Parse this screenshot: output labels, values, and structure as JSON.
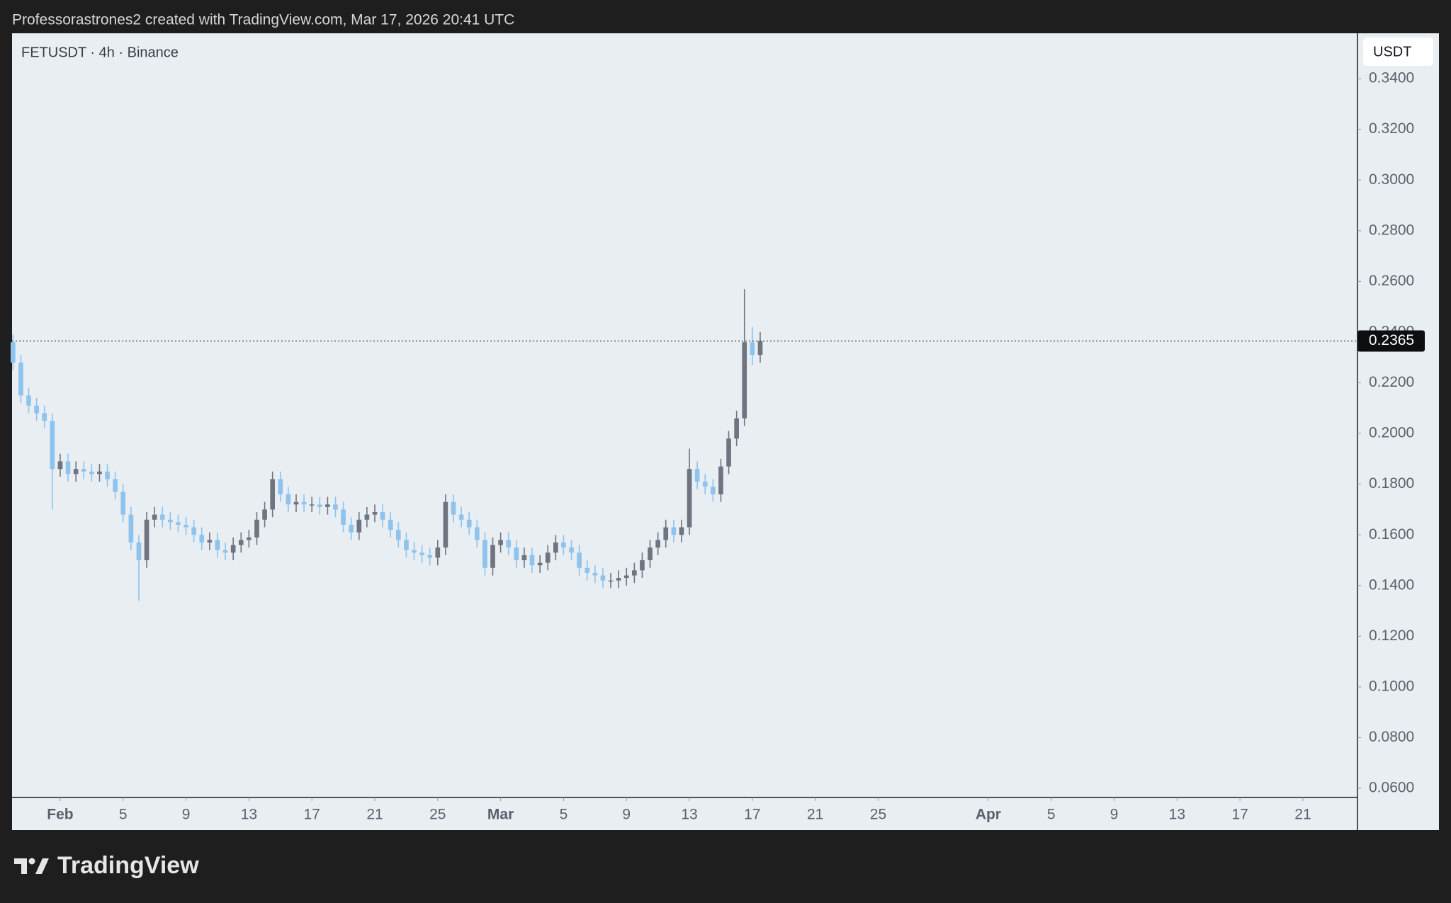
{
  "header": {
    "text": "Professorastrones2 created with TradingView.com, Mar 17, 2026 20:41 UTC"
  },
  "footer": {
    "brand": "TradingView"
  },
  "chart_data": {
    "type": "candlestick",
    "title": "FETUSDT · 4h · Binance",
    "currency": "USDT",
    "up_color": "#6f7480",
    "down_color": "#8ec3ee",
    "price_line": true,
    "x": [
      29,
      29.5,
      30,
      30.5,
      31,
      31.5,
      32,
      32.5,
      33,
      33.5,
      34,
      34.5,
      35,
      35.5,
      36,
      36.5,
      37,
      37.5,
      38,
      38.5,
      39,
      39.5,
      40,
      40.5,
      41,
      41.5,
      42,
      42.5,
      43,
      43.5,
      44,
      44.5,
      45,
      45.5,
      46,
      46.5,
      47,
      47.5,
      48,
      48.5,
      49,
      49.5,
      50,
      50.5,
      51,
      51.5,
      52,
      52.5,
      53,
      53.5,
      54,
      54.5,
      55,
      55.5,
      56,
      56.5,
      57,
      57.5,
      58,
      58.5,
      59,
      59.5,
      60,
      60.5,
      61,
      61.5,
      62,
      62.5,
      63,
      63.5,
      64,
      64.5,
      65,
      65.5,
      66,
      66.5,
      67,
      67.5,
      68,
      68.5,
      69,
      69.5,
      70,
      70.5,
      71,
      71.5,
      72,
      72.5,
      73,
      73.5,
      74,
      74.5,
      75,
      75.5,
      76,
      76.5
    ],
    "open": [
      0.236,
      0.228,
      0.215,
      0.211,
      0.208,
      0.205,
      0.186,
      0.189,
      0.184,
      0.186,
      0.185,
      0.184,
      0.185,
      0.182,
      0.177,
      0.168,
      0.157,
      0.15,
      0.166,
      0.168,
      0.166,
      0.165,
      0.164,
      0.163,
      0.16,
      0.157,
      0.158,
      0.154,
      0.153,
      0.156,
      0.158,
      0.159,
      0.166,
      0.17,
      0.182,
      0.176,
      0.172,
      0.173,
      0.172,
      0.172,
      0.171,
      0.172,
      0.17,
      0.164,
      0.161,
      0.166,
      0.168,
      0.169,
      0.166,
      0.162,
      0.158,
      0.154,
      0.153,
      0.152,
      0.151,
      0.155,
      0.173,
      0.168,
      0.166,
      0.163,
      0.158,
      0.147,
      0.156,
      0.158,
      0.155,
      0.15,
      0.152,
      0.148,
      0.149,
      0.153,
      0.157,
      0.155,
      0.153,
      0.147,
      0.145,
      0.144,
      0.142,
      0.142,
      0.143,
      0.144,
      0.146,
      0.15,
      0.155,
      0.158,
      0.163,
      0.16,
      0.163,
      0.186,
      0.181,
      0.179,
      0.176,
      0.187,
      0.198,
      0.206,
      0.236,
      0.231
    ],
    "high": [
      0.239,
      0.231,
      0.218,
      0.214,
      0.211,
      0.208,
      0.192,
      0.192,
      0.189,
      0.189,
      0.188,
      0.188,
      0.188,
      0.185,
      0.18,
      0.171,
      0.16,
      0.169,
      0.171,
      0.171,
      0.169,
      0.168,
      0.167,
      0.166,
      0.163,
      0.161,
      0.161,
      0.157,
      0.159,
      0.161,
      0.162,
      0.169,
      0.173,
      0.185,
      0.185,
      0.179,
      0.176,
      0.176,
      0.175,
      0.175,
      0.175,
      0.175,
      0.173,
      0.167,
      0.169,
      0.171,
      0.172,
      0.172,
      0.169,
      0.165,
      0.161,
      0.157,
      0.156,
      0.155,
      0.158,
      0.176,
      0.176,
      0.171,
      0.169,
      0.166,
      0.161,
      0.159,
      0.161,
      0.161,
      0.158,
      0.155,
      0.155,
      0.152,
      0.156,
      0.16,
      0.16,
      0.158,
      0.156,
      0.15,
      0.148,
      0.147,
      0.145,
      0.146,
      0.147,
      0.149,
      0.153,
      0.158,
      0.161,
      0.166,
      0.166,
      0.166,
      0.194,
      0.189,
      0.184,
      0.182,
      0.19,
      0.201,
      0.209,
      0.257,
      0.242,
      0.24
    ],
    "low": [
      0.225,
      0.212,
      0.208,
      0.205,
      0.202,
      0.17,
      0.183,
      0.181,
      0.181,
      0.182,
      0.181,
      0.181,
      0.179,
      0.174,
      0.165,
      0.154,
      0.134,
      0.147,
      0.163,
      0.163,
      0.162,
      0.161,
      0.16,
      0.157,
      0.154,
      0.154,
      0.151,
      0.15,
      0.15,
      0.153,
      0.155,
      0.156,
      0.163,
      0.167,
      0.173,
      0.169,
      0.169,
      0.169,
      0.169,
      0.168,
      0.168,
      0.167,
      0.161,
      0.158,
      0.158,
      0.163,
      0.165,
      0.163,
      0.159,
      0.155,
      0.151,
      0.15,
      0.149,
      0.148,
      0.148,
      0.152,
      0.165,
      0.163,
      0.16,
      0.155,
      0.144,
      0.144,
      0.153,
      0.152,
      0.147,
      0.147,
      0.145,
      0.145,
      0.146,
      0.15,
      0.152,
      0.15,
      0.144,
      0.142,
      0.141,
      0.139,
      0.139,
      0.139,
      0.14,
      0.141,
      0.143,
      0.147,
      0.152,
      0.155,
      0.157,
      0.157,
      0.16,
      0.178,
      0.176,
      0.173,
      0.173,
      0.184,
      0.195,
      0.203,
      0.227,
      0.228
    ],
    "close": [
      0.228,
      0.215,
      0.211,
      0.208,
      0.205,
      0.186,
      0.189,
      0.184,
      0.186,
      0.185,
      0.184,
      0.185,
      0.182,
      0.177,
      0.168,
      0.157,
      0.15,
      0.166,
      0.168,
      0.166,
      0.165,
      0.164,
      0.163,
      0.16,
      0.157,
      0.158,
      0.154,
      0.153,
      0.156,
      0.158,
      0.159,
      0.166,
      0.17,
      0.182,
      0.176,
      0.172,
      0.173,
      0.172,
      0.172,
      0.171,
      0.172,
      0.17,
      0.164,
      0.161,
      0.166,
      0.168,
      0.169,
      0.166,
      0.162,
      0.158,
      0.154,
      0.153,
      0.152,
      0.151,
      0.155,
      0.173,
      0.168,
      0.166,
      0.163,
      0.158,
      0.147,
      0.156,
      0.158,
      0.155,
      0.15,
      0.152,
      0.148,
      0.149,
      0.153,
      0.157,
      0.155,
      0.153,
      0.147,
      0.145,
      0.144,
      0.142,
      0.142,
      0.143,
      0.144,
      0.146,
      0.15,
      0.155,
      0.158,
      0.163,
      0.16,
      0.163,
      0.186,
      0.181,
      0.179,
      0.176,
      0.187,
      0.198,
      0.206,
      0.236,
      0.231,
      0.2365
    ],
    "xlim": [
      28.94,
      114.47
    ],
    "xticks": [
      {
        "value": 32,
        "label": "Feb"
      },
      {
        "value": 36,
        "label": "5"
      },
      {
        "value": 40,
        "label": "9"
      },
      {
        "value": 44,
        "label": "13"
      },
      {
        "value": 48,
        "label": "17"
      },
      {
        "value": 52,
        "label": "21"
      },
      {
        "value": 56,
        "label": "25"
      },
      {
        "value": 60,
        "label": "Mar"
      },
      {
        "value": 64,
        "label": "5"
      },
      {
        "value": 68,
        "label": "9"
      },
      {
        "value": 72,
        "label": "13"
      },
      {
        "value": 76,
        "label": "17"
      },
      {
        "value": 80,
        "label": "21"
      },
      {
        "value": 84,
        "label": "25"
      },
      {
        "value": 91,
        "label": "Apr"
      },
      {
        "value": 95,
        "label": "5"
      },
      {
        "value": 99,
        "label": "9"
      },
      {
        "value": 103,
        "label": "13"
      },
      {
        "value": 107,
        "label": "17"
      },
      {
        "value": 111,
        "label": "21"
      }
    ],
    "ylim": [
      0.0564,
      0.3579
    ],
    "yticks": [
      {
        "value": 0.06,
        "label": "0.0600"
      },
      {
        "value": 0.08,
        "label": "0.0800"
      },
      {
        "value": 0.1,
        "label": "0.1000"
      },
      {
        "value": 0.12,
        "label": "0.1200"
      },
      {
        "value": 0.14,
        "label": "0.1400"
      },
      {
        "value": 0.16,
        "label": "0.1600"
      },
      {
        "value": 0.18,
        "label": "0.1800"
      },
      {
        "value": 0.2,
        "label": "0.2000"
      },
      {
        "value": 0.22,
        "label": "0.2200"
      },
      {
        "value": 0.24,
        "label": "0.2400"
      },
      {
        "value": 0.26,
        "label": "0.2600"
      },
      {
        "value": 0.28,
        "label": "0.2800"
      },
      {
        "value": 0.3,
        "label": "0.3000"
      },
      {
        "value": 0.32,
        "label": "0.3200"
      },
      {
        "value": 0.34,
        "label": "0.3400"
      }
    ]
  }
}
